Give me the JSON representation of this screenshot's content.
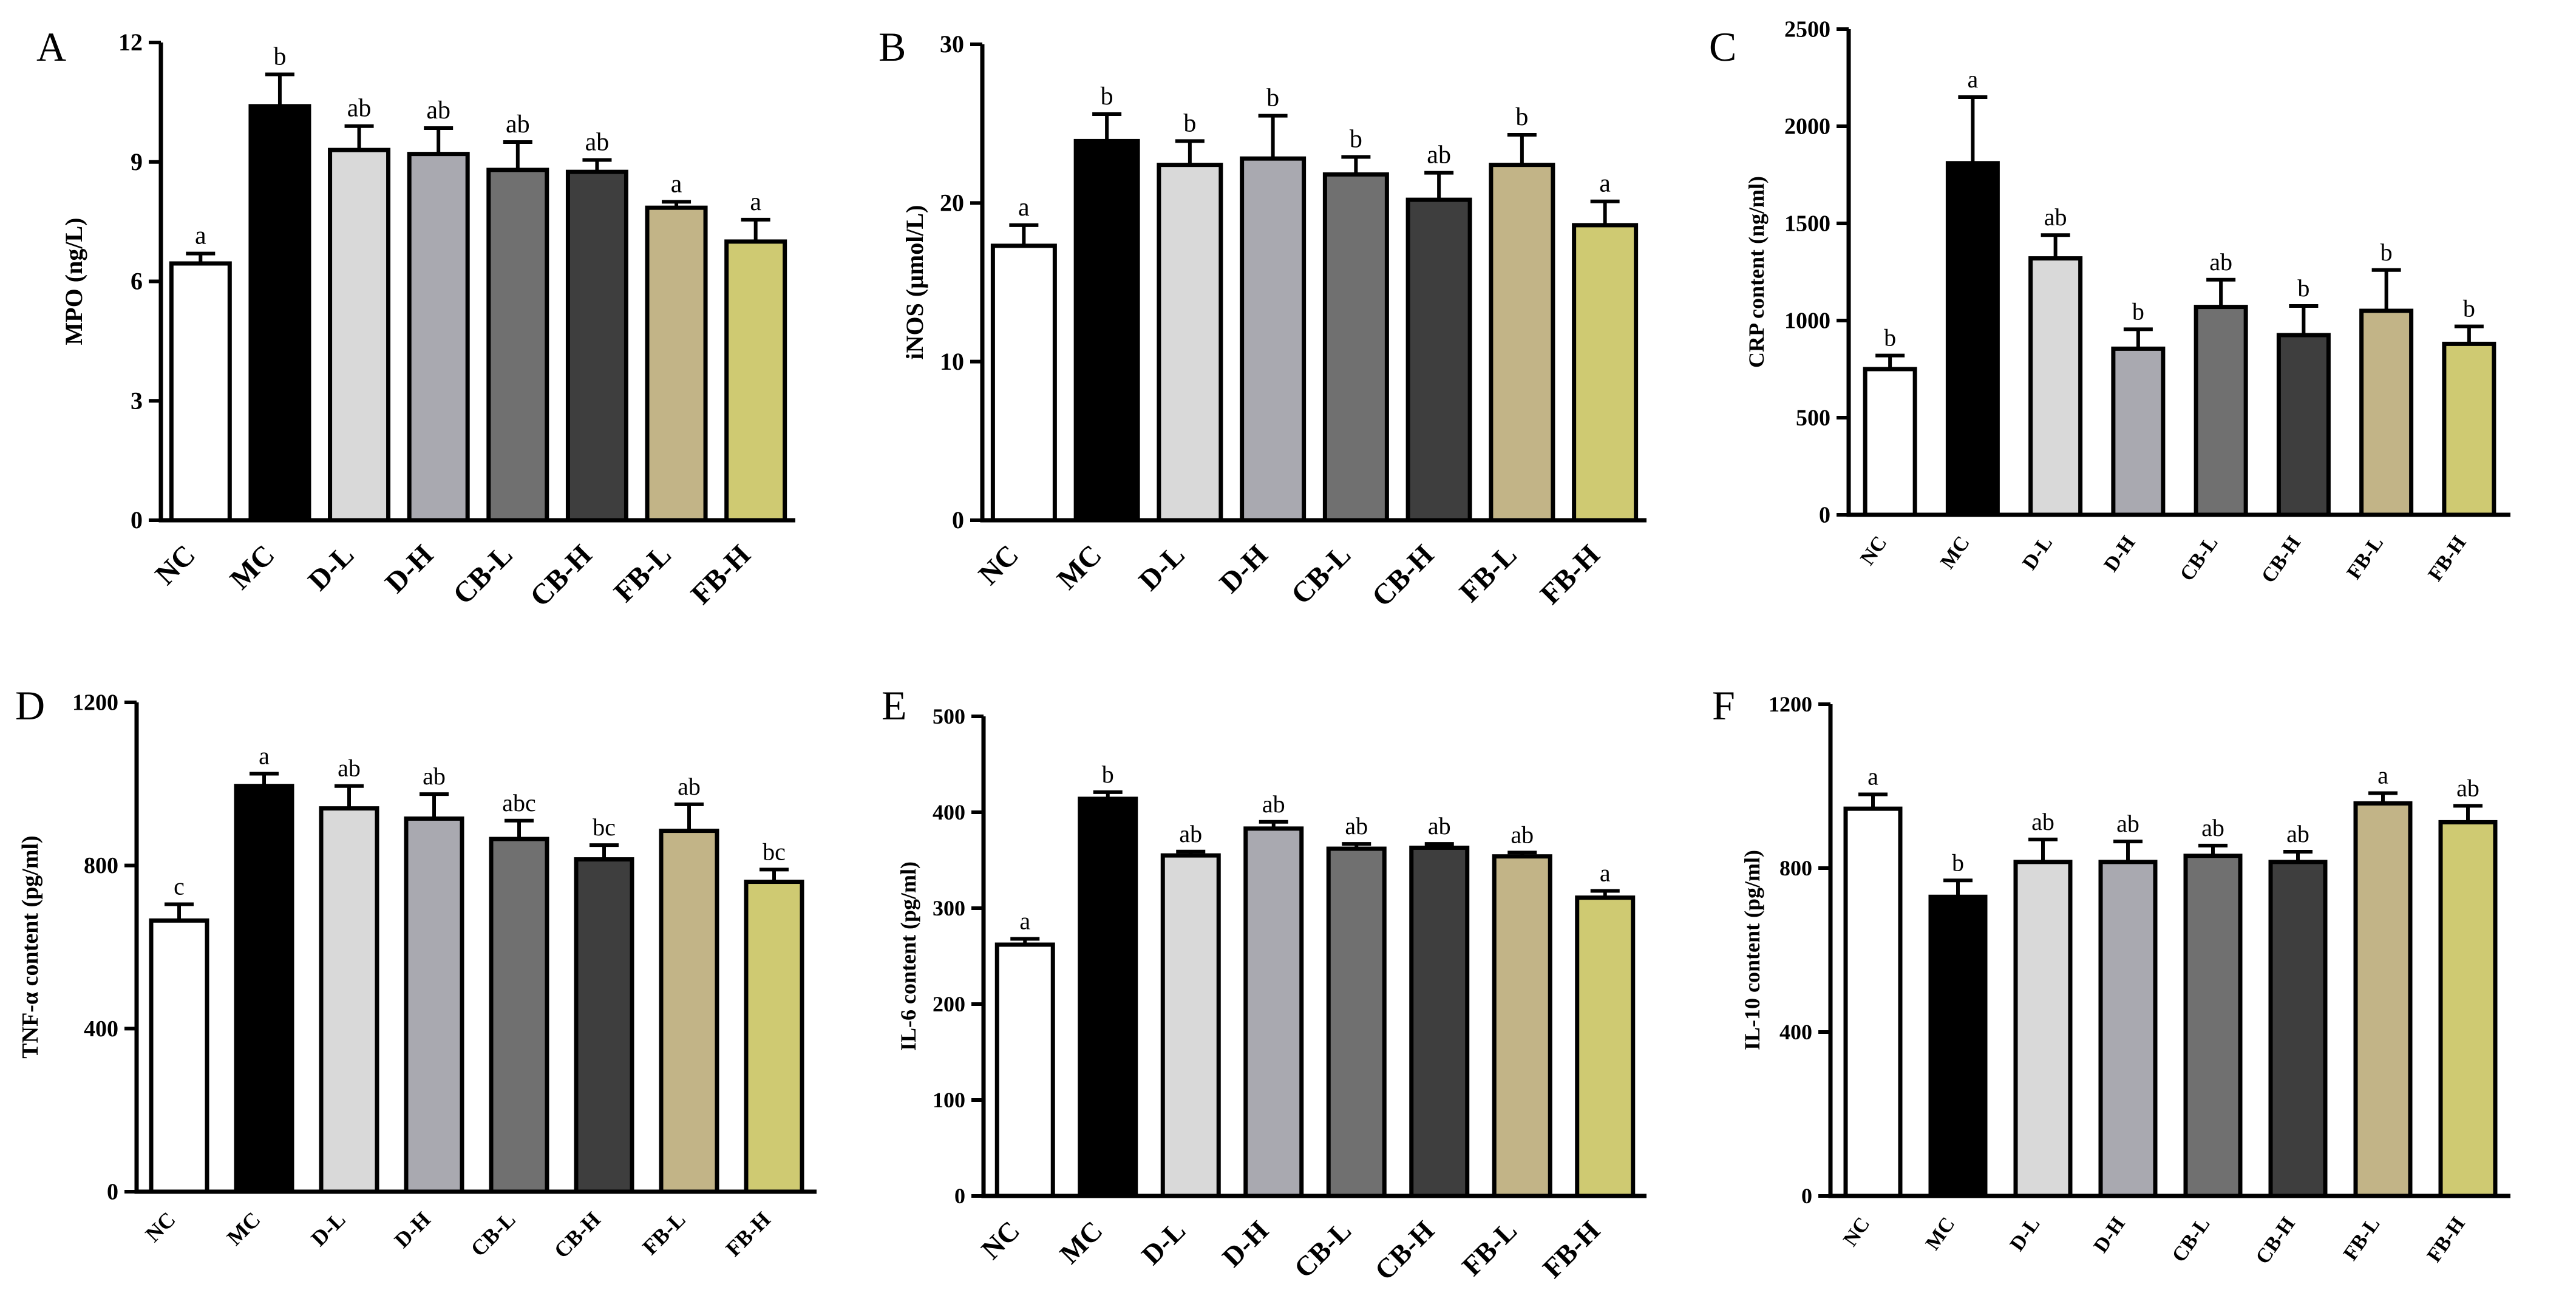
{
  "figure": {
    "groups": [
      "NC",
      "MC",
      "D-L",
      "D-H",
      "CB-L",
      "CB-H",
      "FB-L",
      "FB-H"
    ],
    "colors": [
      "#ffffff",
      "#000000",
      "#d9d9d9",
      "#a9a9b0",
      "#707070",
      "#3e3e3e",
      "#c2b487",
      "#cfca72"
    ]
  },
  "chart_data": [
    {
      "type": "bar",
      "panel": "A",
      "ylabel": "MPO  (ng/L)",
      "ylim": [
        0,
        12
      ],
      "yticks": [
        0,
        3,
        6,
        9,
        12
      ],
      "categories": [
        "NC",
        "MC",
        "D-L",
        "D-H",
        "CB-L",
        "CB-H",
        "FB-L",
        "FB-H"
      ],
      "values": [
        6.45,
        10.4,
        9.3,
        9.2,
        8.8,
        8.75,
        7.85,
        7.0
      ],
      "errors": [
        0.25,
        0.8,
        0.6,
        0.65,
        0.7,
        0.3,
        0.15,
        0.55
      ],
      "letters": [
        "a",
        "b",
        "ab",
        "ab",
        "ab",
        "ab",
        "a",
        "a"
      ]
    },
    {
      "type": "bar",
      "panel": "B",
      "ylabel": "iNOS (μmol/L)",
      "ylim": [
        0,
        30
      ],
      "yticks": [
        0,
        10,
        20,
        30
      ],
      "categories": [
        "NC",
        "MC",
        "D-L",
        "D-H",
        "CB-L",
        "CB-H",
        "FB-L",
        "FB-H"
      ],
      "values": [
        17.3,
        23.9,
        22.4,
        22.8,
        21.8,
        20.2,
        22.4,
        18.6
      ],
      "errors": [
        1.3,
        1.7,
        1.5,
        2.7,
        1.1,
        1.7,
        1.9,
        1.5
      ],
      "letters": [
        "a",
        "b",
        "b",
        "b",
        "b",
        "ab",
        "b",
        "a"
      ]
    },
    {
      "type": "bar",
      "panel": "C",
      "ylabel": "CRP content (ng/ml)",
      "ylim": [
        0,
        2500
      ],
      "yticks": [
        0,
        500,
        1000,
        1500,
        2000,
        2500
      ],
      "categories": [
        "NC",
        "MC",
        "D-L",
        "D-H",
        "CB-L",
        "CB-H",
        "FB-L",
        "FB-H"
      ],
      "values": [
        750,
        1810,
        1320,
        855,
        1070,
        925,
        1050,
        880
      ],
      "errors": [
        70,
        340,
        120,
        100,
        140,
        150,
        210,
        90
      ],
      "letters": [
        "b",
        "a",
        "ab",
        "b",
        "ab",
        "b",
        "b",
        "b"
      ]
    },
    {
      "type": "bar",
      "panel": "D",
      "ylabel": "TNF-α content (pg/ml)",
      "ylim": [
        0,
        1200
      ],
      "yticks": [
        0,
        400,
        800,
        1200
      ],
      "categories": [
        "NC",
        "MC",
        "D-L",
        "D-H",
        "CB-L",
        "CB-H",
        "FB-L",
        "FB-H"
      ],
      "values": [
        665,
        995,
        940,
        915,
        865,
        815,
        885,
        760
      ],
      "errors": [
        40,
        30,
        55,
        60,
        45,
        35,
        65,
        30
      ],
      "letters": [
        "c",
        "a",
        "ab",
        "ab",
        "abc",
        "bc",
        "ab",
        "bc"
      ]
    },
    {
      "type": "bar",
      "panel": "E",
      "ylabel": "IL-6 content (pg/ml)",
      "ylim": [
        0,
        500
      ],
      "yticks": [
        0,
        100,
        200,
        300,
        400,
        500
      ],
      "categories": [
        "NC",
        "MC",
        "D-L",
        "D-H",
        "CB-L",
        "CB-H",
        "FB-L",
        "FB-H"
      ],
      "values": [
        262,
        414,
        355,
        383,
        362,
        363,
        354,
        311
      ],
      "errors": [
        6,
        7,
        4,
        7,
        5,
        4,
        4,
        7
      ],
      "letters": [
        "a",
        "b",
        "ab",
        "ab",
        "ab",
        "ab",
        "ab",
        "a"
      ]
    },
    {
      "type": "bar",
      "panel": "F",
      "ylabel": "IL-10 content (pg/ml)",
      "ylim": [
        0,
        1200
      ],
      "yticks": [
        0,
        400,
        800,
        1200
      ],
      "categories": [
        "NC",
        "MC",
        "D-L",
        "D-H",
        "CB-L",
        "CB-H",
        "FB-L",
        "FB-H"
      ],
      "values": [
        945,
        730,
        815,
        815,
        830,
        815,
        958,
        912
      ],
      "errors": [
        35,
        40,
        55,
        50,
        25,
        25,
        25,
        40
      ],
      "letters": [
        "a",
        "b",
        "ab",
        "ab",
        "ab",
        "ab",
        "a",
        "ab"
      ]
    }
  ]
}
